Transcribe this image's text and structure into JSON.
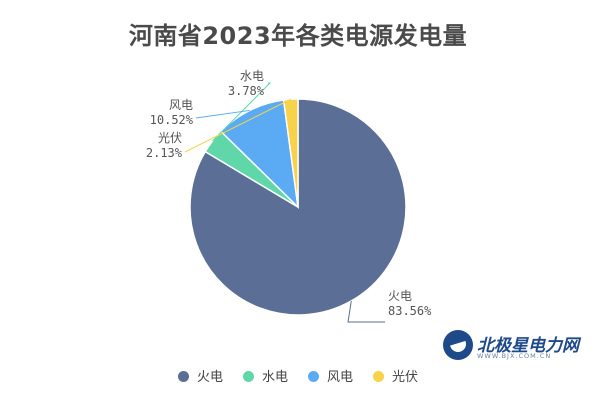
{
  "title": "河南省2023年各类电源发电量",
  "watermark": {
    "name": "北极星电力网",
    "url": "WWW.BJX.COM.CN"
  },
  "colors": {
    "火电": "#5b6e96",
    "水电": "#5fd7a9",
    "风电": "#5aabf4",
    "光伏": "#f7d24a"
  },
  "chart_data": {
    "type": "pie",
    "title": "河南省2023年各类电源发电量",
    "categories": [
      "火电",
      "水电",
      "风电",
      "光伏"
    ],
    "values": [
      83.56,
      3.78,
      10.52,
      2.13
    ],
    "value_labels": [
      "83.56%",
      "3.78%",
      "10.52%",
      "2.13%"
    ],
    "unit": "%",
    "legend_position": "bottom",
    "start_angle": "top, clockwise"
  }
}
